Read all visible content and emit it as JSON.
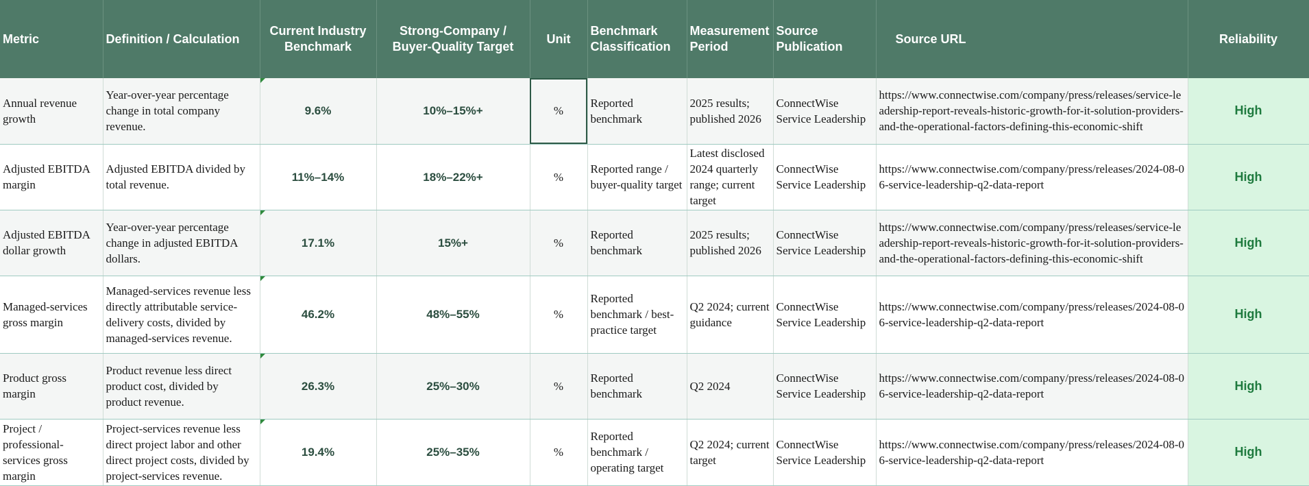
{
  "headers": {
    "metric": "Metric",
    "definition": "Definition / Calculation",
    "benchmark": "Current Industry Benchmark",
    "target": "Strong-Company / Buyer-Quality Target",
    "unit": "Unit",
    "classification": "Benchmark Classification",
    "period": "Measurement Period",
    "source": "Source Publication",
    "url": "Source URL",
    "reliability": "Reliability"
  },
  "rows": [
    {
      "metric": "Annual revenue growth",
      "definition": "Year-over-year percentage change in total company revenue.",
      "benchmark": "9.6%",
      "target": "10%–15%+",
      "unit": "%",
      "classification": "Reported benchmark",
      "period": "2025 results; published 2026",
      "source": "ConnectWise Service Leadership",
      "url": "https://www.connectwise.com/company/press/releases/service-leadership-report-reveals-historic-growth-for-it-solution-providers-and-the-operational-factors-defining-this-economic-shift",
      "reliability": "High"
    },
    {
      "metric": "Adjusted EBITDA margin",
      "definition": "Adjusted EBITDA divided by total revenue.",
      "benchmark": "11%–14%",
      "target": "18%–22%+",
      "unit": "%",
      "classification": "Reported range / buyer-quality target",
      "period": "Latest disclosed 2024 quarterly range; current target",
      "source": "ConnectWise Service Leadership",
      "url": "https://www.connectwise.com/company/press/releases/2024-08-06-service-leadership-q2-data-report",
      "reliability": "High"
    },
    {
      "metric": "Adjusted EBITDA dollar growth",
      "definition": "Year-over-year percentage change in adjusted EBITDA dollars.",
      "benchmark": "17.1%",
      "target": "15%+",
      "unit": "%",
      "classification": "Reported benchmark",
      "period": "2025 results; published 2026",
      "source": "ConnectWise Service Leadership",
      "url": "https://www.connectwise.com/company/press/releases/service-leadership-report-reveals-historic-growth-for-it-solution-providers-and-the-operational-factors-defining-this-economic-shift",
      "reliability": "High"
    },
    {
      "metric": "Managed-services gross margin",
      "definition": "Managed-services revenue less directly attributable service-delivery costs, divided by managed-services revenue.",
      "benchmark": "46.2%",
      "target": "48%–55%",
      "unit": "%",
      "classification": "Reported benchmark / best-practice target",
      "period": "Q2 2024; current guidance",
      "source": "ConnectWise Service Leadership",
      "url": "https://www.connectwise.com/company/press/releases/2024-08-06-service-leadership-q2-data-report",
      "reliability": "High"
    },
    {
      "metric": "Product gross margin",
      "definition": "Product revenue less direct product cost, divided by product revenue.",
      "benchmark": "26.3%",
      "target": "25%–30%",
      "unit": "%",
      "classification": "Reported benchmark",
      "period": "Q2 2024",
      "source": "ConnectWise Service Leadership",
      "url": "https://www.connectwise.com/company/press/releases/2024-08-06-service-leadership-q2-data-report",
      "reliability": "High"
    },
    {
      "metric": "Project / professional-services gross margin",
      "definition": "Project-services revenue less direct project labor and other direct project costs, divided by project-services revenue.",
      "benchmark": "19.4%",
      "target": "25%–35%",
      "unit": "%",
      "classification": "Reported benchmark / operating target",
      "period": "Q2 2024; current target",
      "source": "ConnectWise Service Leadership",
      "url": "https://www.connectwise.com/company/press/releases/2024-08-06-service-leadership-q2-data-report",
      "reliability": "High"
    }
  ]
}
